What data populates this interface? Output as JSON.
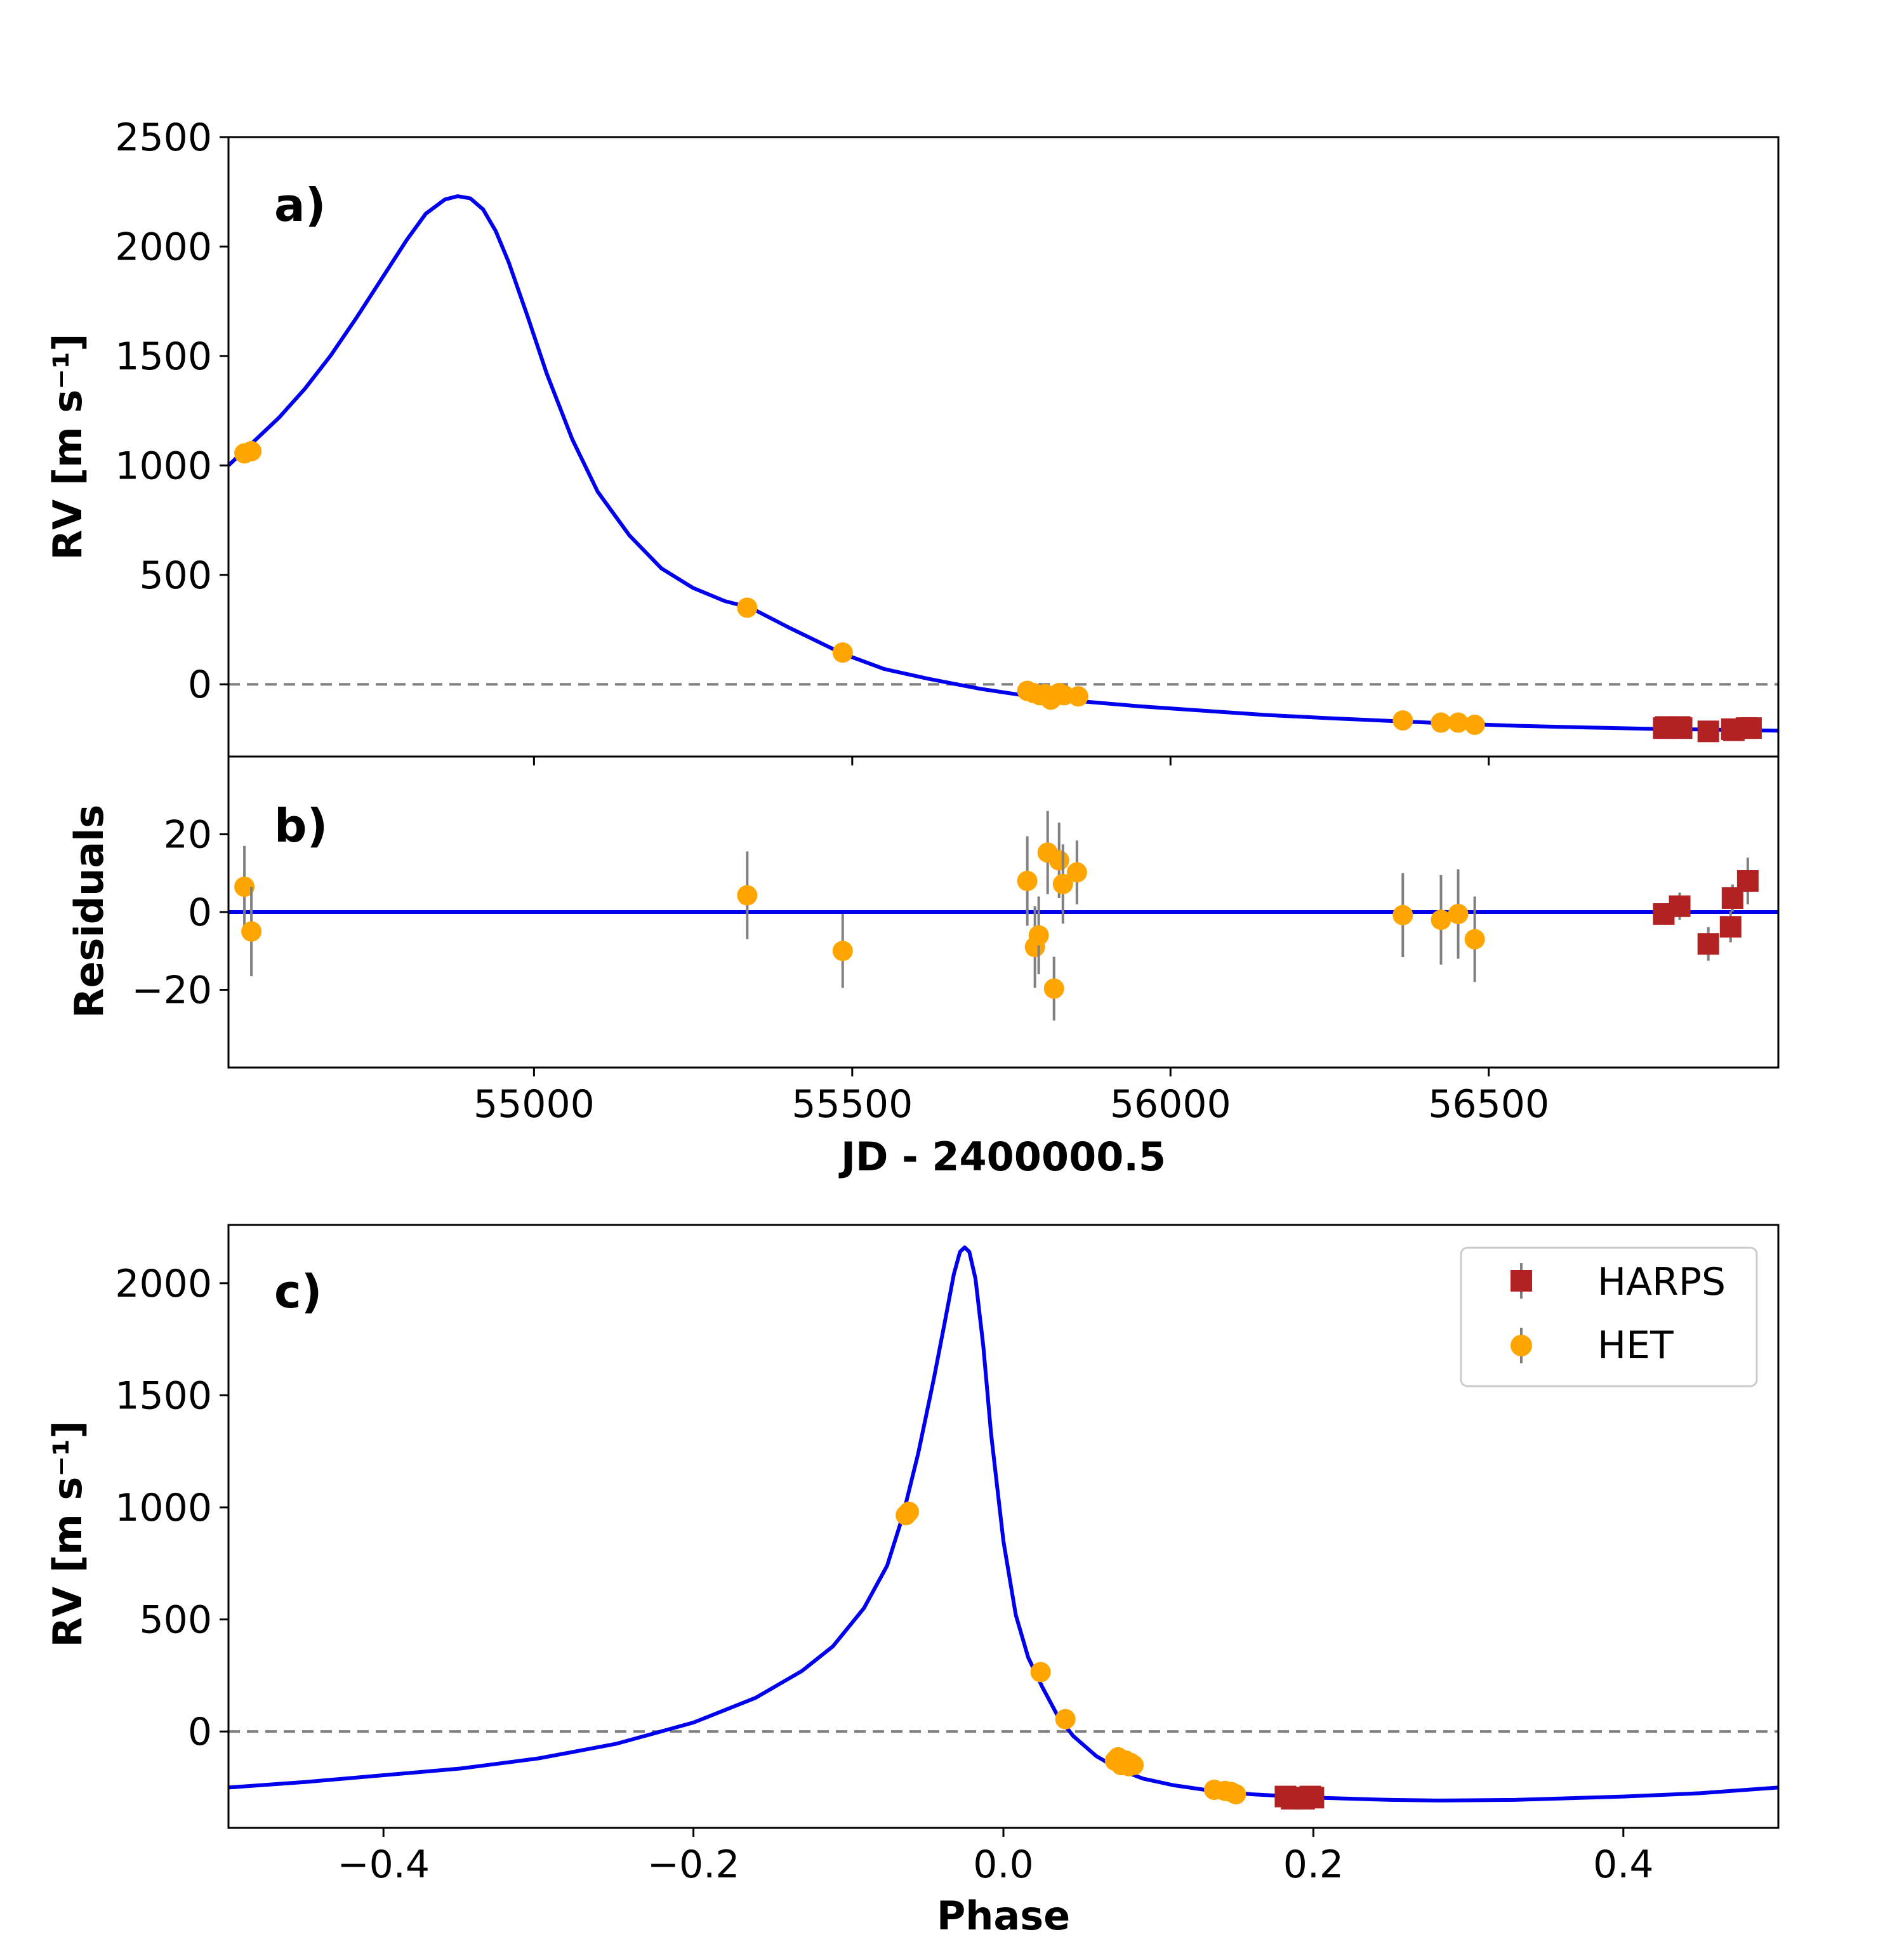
{
  "chart_data": [
    {
      "panel": "a",
      "type": "line",
      "tag": "a)",
      "xlabel": "",
      "ylabel": "RV [m s⁻¹]",
      "xlim": [
        54520,
        56955
      ],
      "ylim": [
        -330,
        2500
      ],
      "yticks": [
        0,
        500,
        1000,
        1500,
        2000,
        2500
      ],
      "ytick_labels": [
        "0",
        "500",
        "1000",
        "1500",
        "2000",
        "2500"
      ],
      "xticks": [
        55000,
        55500,
        56000,
        56500
      ],
      "zero_line": true,
      "model_curve": {
        "name": "Keplerian fit",
        "color": "#0000ee",
        "x": [
          54520,
          54560,
          54600,
          54640,
          54680,
          54720,
          54760,
          54800,
          54830,
          54860,
          54880,
          54900,
          54920,
          54940,
          54960,
          54990,
          55020,
          55060,
          55100,
          55150,
          55200,
          55250,
          55300,
          55340,
          55400,
          55485,
          55550,
          55620,
          55700,
          55780,
          55850,
          55950,
          56050,
          56150,
          56250,
          56365,
          56450,
          56550,
          56650,
          56750,
          56850,
          56955
        ],
        "y": [
          1000,
          1110,
          1220,
          1350,
          1500,
          1670,
          1850,
          2030,
          2150,
          2215,
          2230,
          2220,
          2170,
          2070,
          1930,
          1680,
          1420,
          1120,
          880,
          680,
          530,
          440,
          380,
          350,
          260,
          140,
          70,
          25,
          -20,
          -55,
          -75,
          -100,
          -120,
          -140,
          -155,
          -170,
          -180,
          -190,
          -197,
          -203,
          -207,
          -212
        ]
      },
      "series": [
        {
          "name": "HET",
          "marker": "circle",
          "color": "#ffa500",
          "x": [
            54545,
            54556,
            55335,
            55485,
            55775,
            55785,
            55795,
            55803,
            55812,
            55818,
            55825,
            55833,
            55855,
            56365,
            56425,
            56452,
            56478
          ],
          "y": [
            1055,
            1065,
            350,
            145,
            -30,
            -40,
            -50,
            -45,
            -70,
            -55,
            -40,
            -50,
            -55,
            -165,
            -175,
            -175,
            -185
          ]
        },
        {
          "name": "HARPS",
          "marker": "square",
          "color": "#b22222",
          "x": [
            56775,
            56778,
            56800,
            56803,
            56845,
            56882,
            56885,
            56905,
            56912
          ],
          "y": [
            -200,
            -195,
            -195,
            -200,
            -215,
            -205,
            -210,
            -200,
            -200
          ]
        }
      ]
    },
    {
      "panel": "b",
      "type": "scatter",
      "tag": "b)",
      "xlabel": "JD - 2400000.5",
      "ylabel": "Residuals",
      "xlim": [
        54520,
        56955
      ],
      "ylim": [
        -40,
        40
      ],
      "yticks": [
        -20,
        0,
        20
      ],
      "ytick_labels": [
        "−20",
        "0",
        "20"
      ],
      "xticks": [
        55000,
        55500,
        56000,
        56500
      ],
      "xtick_labels": [
        "55000",
        "55500",
        "56000",
        "56500"
      ],
      "zero_line_color": "#0000ee",
      "series": [
        {
          "name": "HET",
          "marker": "circle",
          "color": "#ffa500",
          "x": [
            54545,
            54556,
            55335,
            55485,
            55775,
            55787,
            55793,
            55807,
            55817,
            55825,
            55831,
            55853,
            56365,
            56425,
            56452,
            56478
          ],
          "y": [
            6.5,
            -5,
            4.3,
            -10,
            8,
            -9,
            -6,
            15.3,
            -19.7,
            13.3,
            7.2,
            10.2,
            -0.8,
            -2,
            -0.5,
            -7
          ],
          "err": [
            10.5,
            11.5,
            11.3,
            9.5,
            11.5,
            10.5,
            10,
            10.7,
            8.2,
            9.7,
            10.2,
            8.2,
            10.8,
            11.5,
            11.5,
            11
          ]
        },
        {
          "name": "HARPS",
          "marker": "square",
          "color": "#b22222",
          "x": [
            56775,
            56800,
            56845,
            56880,
            56883,
            56907
          ],
          "y": [
            -0.5,
            1.5,
            -8.2,
            -3.8,
            3.6,
            8
          ],
          "err": [
            2.5,
            3.5,
            4.3,
            4,
            3.5,
            6
          ]
        }
      ]
    },
    {
      "panel": "c",
      "type": "line",
      "tag": "c)",
      "xlabel": "Phase",
      "ylabel": "RV [m s⁻¹]",
      "xlim": [
        -0.5,
        0.5
      ],
      "ylim": [
        -430,
        2260
      ],
      "yticks": [
        0,
        500,
        1000,
        1500,
        2000
      ],
      "ytick_labels": [
        "0",
        "500",
        "1000",
        "1500",
        "2000"
      ],
      "xticks": [
        -0.4,
        -0.2,
        0.0,
        0.2,
        0.4
      ],
      "xtick_labels": [
        "−0.4",
        "−0.2",
        "0.0",
        "0.2",
        "0.4"
      ],
      "zero_line": true,
      "model_curve": {
        "name": "Keplerian fit",
        "color": "#0000ee",
        "x": [
          -0.5,
          -0.45,
          -0.4,
          -0.35,
          -0.3,
          -0.25,
          -0.2,
          -0.16,
          -0.13,
          -0.11,
          -0.09,
          -0.075,
          -0.065,
          -0.055,
          -0.045,
          -0.038,
          -0.032,
          -0.028,
          -0.025,
          -0.022,
          -0.018,
          -0.013,
          -0.008,
          0.0,
          0.008,
          0.016,
          0.025,
          0.035,
          0.045,
          0.06,
          0.075,
          0.09,
          0.11,
          0.13,
          0.16,
          0.2,
          0.25,
          0.28,
          0.33,
          0.4,
          0.45,
          0.5
        ],
        "y": [
          -250,
          -225,
          -195,
          -165,
          -120,
          -55,
          40,
          150,
          270,
          380,
          550,
          740,
          960,
          1240,
          1570,
          1820,
          2040,
          2140,
          2160,
          2140,
          2020,
          1720,
          1330,
          850,
          520,
          330,
          200,
          70,
          -20,
          -110,
          -170,
          -210,
          -240,
          -260,
          -280,
          -295,
          -305,
          -308,
          -305,
          -290,
          -275,
          -250
        ]
      },
      "series": [
        {
          "name": "HET",
          "marker": "circle",
          "color": "#ffa500",
          "x": [
            -0.063,
            -0.061,
            0.024,
            0.04,
            0.072,
            0.074,
            0.076,
            0.077,
            0.079,
            0.08,
            0.081,
            0.082,
            0.084,
            0.136,
            0.143,
            0.147,
            0.15
          ],
          "y": [
            965,
            980,
            265,
            55,
            -130,
            -115,
            -150,
            -140,
            -130,
            -145,
            -155,
            -140,
            -150,
            -260,
            -265,
            -270,
            -280
          ]
        },
        {
          "name": "HARPS",
          "marker": "square",
          "color": "#b22222",
          "x": [
            0.182,
            0.186,
            0.19,
            0.194,
            0.198,
            0.2
          ],
          "y": [
            -290,
            -300,
            -295,
            -300,
            -290,
            -295
          ]
        }
      ],
      "legend": {
        "placement": "top-right",
        "entries": [
          {
            "label": "HARPS",
            "marker": "square",
            "color": "#b22222"
          },
          {
            "label": "HET",
            "marker": "circle",
            "color": "#ffa500"
          }
        ]
      }
    }
  ]
}
